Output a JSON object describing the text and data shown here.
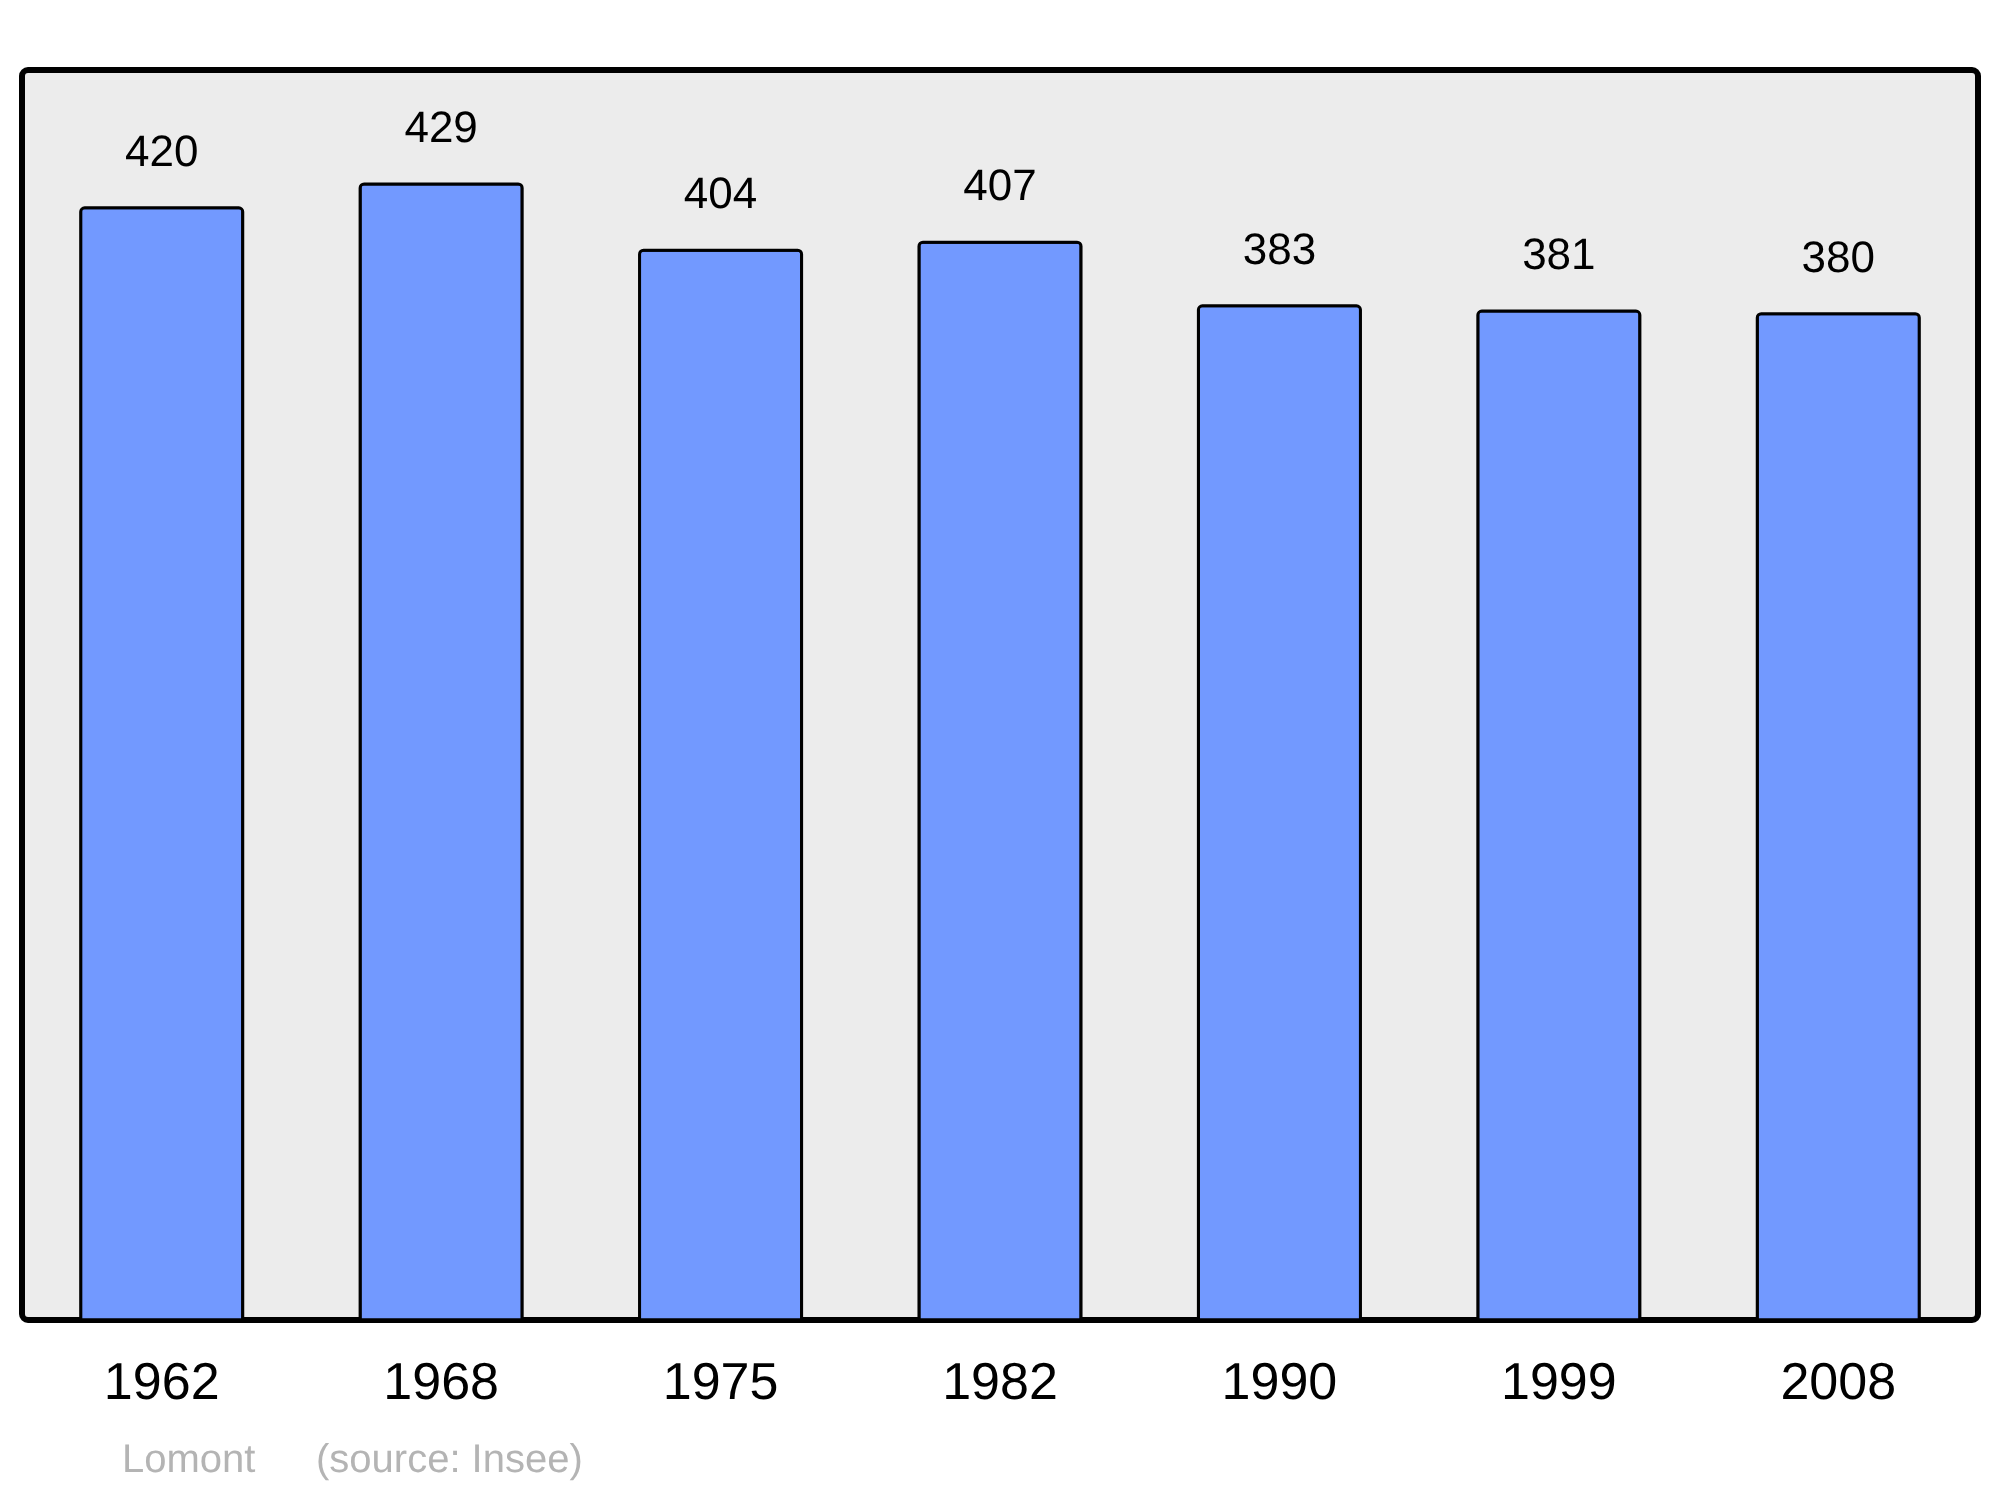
{
  "chart_data": {
    "type": "bar",
    "categories": [
      "1962",
      "1968",
      "1975",
      "1982",
      "1990",
      "1999",
      "2008"
    ],
    "values": [
      420,
      429,
      404,
      407,
      383,
      381,
      380
    ],
    "color": "#7299ff",
    "data_labels": true,
    "annotations": [
      "Lomont",
      "(source: Insee)"
    ]
  }
}
